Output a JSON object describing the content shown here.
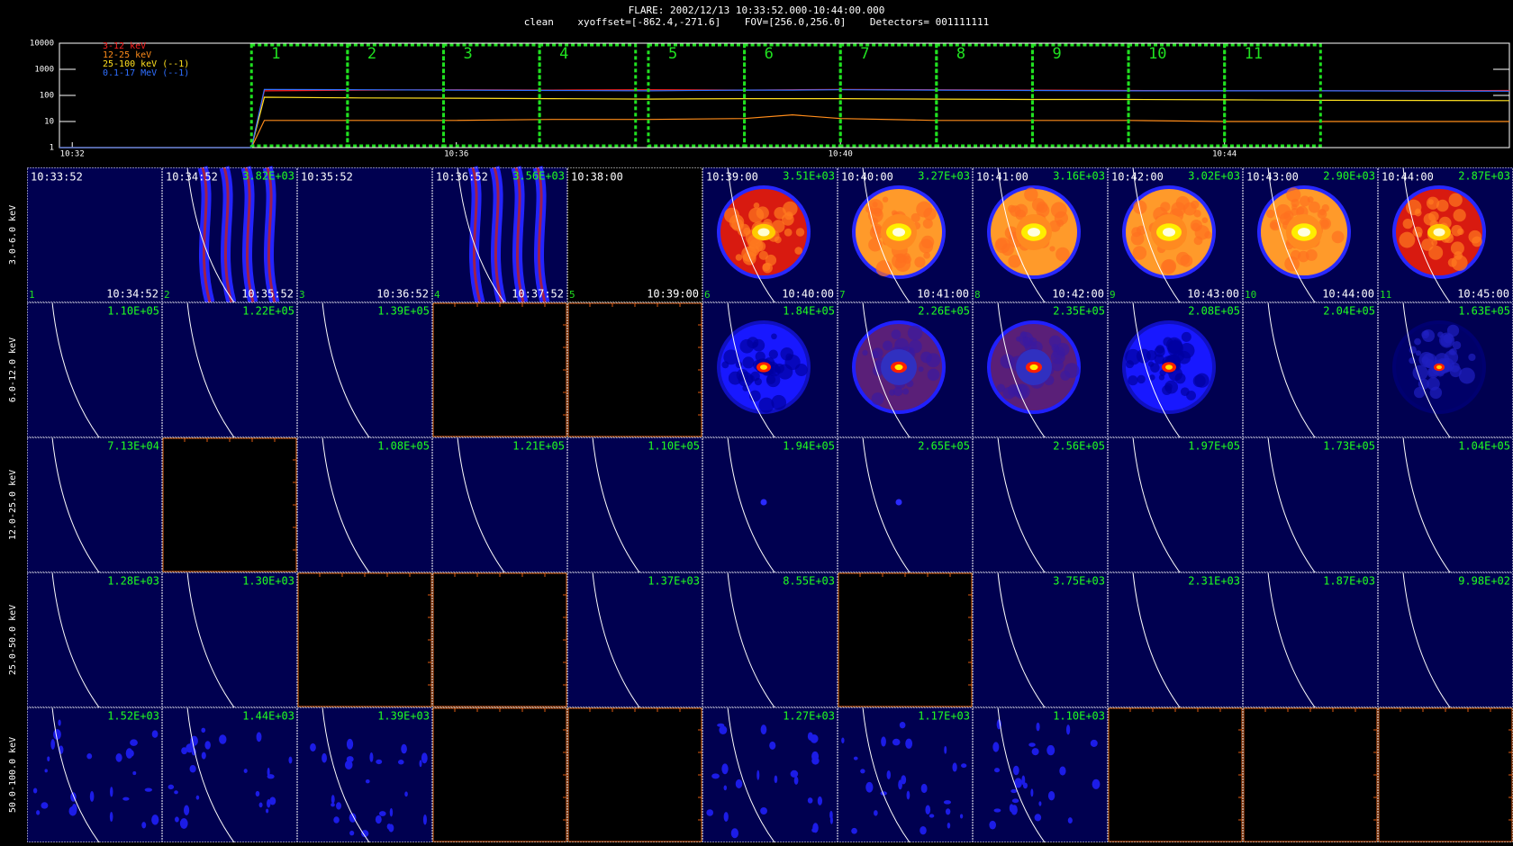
{
  "header": {
    "title": "FLARE: 2002/12/13 10:33:52.000-10:44:00.000",
    "subtitle": "clean    xyoffset=[-862.4,-271.6]    FOV=[256.0,256.0]    Detectors= 001111111"
  },
  "chart_data": {
    "type": "line",
    "log_scale": true,
    "x": [
      "10:31:52",
      "10:33:52",
      "10:34:00",
      "10:35:00",
      "10:36:00",
      "10:37:00",
      "10:38:00",
      "10:39:00",
      "10:39:30",
      "10:40:00",
      "10:41:00",
      "10:42:00",
      "10:43:00",
      "10:44:00",
      "10:45:00",
      "10:46:58"
    ],
    "series": [
      {
        "name": "3-12 keV",
        "color": "#ff2020",
        "values": [
          1,
          1,
          150,
          160,
          165,
          160,
          165,
          160,
          165,
          170,
          165,
          160,
          155,
          150,
          150,
          155
        ]
      },
      {
        "name": "12-25 keV",
        "color": "#ff8c1a",
        "values": [
          1,
          1,
          11,
          11,
          11,
          12,
          12,
          13,
          18,
          13,
          11,
          11,
          11,
          10,
          10,
          10
        ]
      },
      {
        "name": "25-100 keV (--1)",
        "color": "#ffe020",
        "values": [
          1,
          1,
          85,
          80,
          78,
          75,
          72,
          75,
          75,
          75,
          72,
          70,
          70,
          68,
          65,
          63
        ]
      },
      {
        "name": "0.1-17 MeV (--1)",
        "color": "#2f6fff",
        "values": [
          1,
          1,
          170,
          165,
          160,
          155,
          150,
          160,
          160,
          165,
          160,
          155,
          150,
          150,
          150,
          145
        ]
      }
    ],
    "xlim": [
      "10:31:52",
      "10:46:58"
    ],
    "xticks": [
      "10:32",
      "10:36",
      "10:40",
      "10:44"
    ],
    "ylim": [
      1,
      10000
    ],
    "yticks": [
      1,
      10,
      100,
      1000,
      10000
    ],
    "legend": "upper left"
  },
  "intervals": [
    {
      "number": "1",
      "start": "10:33:52",
      "end": "10:34:52"
    },
    {
      "number": "2",
      "start": "10:34:52",
      "end": "10:35:52"
    },
    {
      "number": "3",
      "start": "10:35:52",
      "end": "10:36:52"
    },
    {
      "number": "4",
      "start": "10:36:52",
      "end": "10:37:52"
    },
    {
      "number": "5",
      "start": "10:38:00",
      "end": "10:39:00"
    },
    {
      "number": "6",
      "start": "10:39:00",
      "end": "10:40:00"
    },
    {
      "number": "7",
      "start": "10:40:00",
      "end": "10:41:00"
    },
    {
      "number": "8",
      "start": "10:41:00",
      "end": "10:42:00"
    },
    {
      "number": "9",
      "start": "10:42:00",
      "end": "10:43:00"
    },
    {
      "number": "10",
      "start": "10:43:00",
      "end": "10:44:00"
    },
    {
      "number": "11",
      "start": "10:44:00",
      "end": "10:45:00"
    }
  ],
  "grid": {
    "bands": [
      "3.0-6.0 keV",
      "6.0-12.0 keV",
      "12.0-25.0 keV",
      "25.0-50.0 keV",
      "50.0-100.0 keV"
    ],
    "cells": [
      [
        {
          "style": "plain"
        },
        {
          "peak": "3.82E+03",
          "style": "streak"
        },
        {
          "style": "plain"
        },
        {
          "peak": "3.56E+03",
          "style": "streak"
        },
        {
          "style": "black"
        },
        {
          "peak": "3.51E+03",
          "style": "disk-red"
        },
        {
          "peak": "3.27E+03",
          "style": "disk-orange"
        },
        {
          "peak": "3.16E+03",
          "style": "disk-orange"
        },
        {
          "peak": "3.02E+03",
          "style": "disk-orange"
        },
        {
          "peak": "2.90E+03",
          "style": "disk-orange"
        },
        {
          "peak": "2.87E+03",
          "style": "disk-red"
        }
      ],
      [
        {
          "peak": "1.10E+05",
          "style": "limb"
        },
        {
          "peak": "1.22E+05",
          "style": "limb"
        },
        {
          "peak": "1.39E+05",
          "style": "limb"
        },
        {
          "style": "none"
        },
        {
          "style": "none"
        },
        {
          "peak": "1.84E+05",
          "style": "disk-blue"
        },
        {
          "peak": "2.26E+05",
          "style": "disk-purple"
        },
        {
          "peak": "2.35E+05",
          "style": "disk-purple"
        },
        {
          "peak": "2.08E+05",
          "style": "disk-blue"
        },
        {
          "peak": "2.04E+05",
          "style": "limb"
        },
        {
          "peak": "1.63E+05",
          "style": "disk-faint"
        }
      ],
      [
        {
          "peak": "7.13E+04",
          "style": "limb"
        },
        {
          "style": "none"
        },
        {
          "peak": "1.08E+05",
          "style": "limb"
        },
        {
          "peak": "1.21E+05",
          "style": "limb"
        },
        {
          "peak": "1.10E+05",
          "style": "limb"
        },
        {
          "peak": "1.94E+05",
          "style": "dot"
        },
        {
          "peak": "2.65E+05",
          "style": "dot"
        },
        {
          "peak": "2.56E+05",
          "style": "limb"
        },
        {
          "peak": "1.97E+05",
          "style": "limb"
        },
        {
          "peak": "1.73E+05",
          "style": "limb"
        },
        {
          "peak": "1.04E+05",
          "style": "limb"
        }
      ],
      [
        {
          "peak": "1.28E+03",
          "style": "limb"
        },
        {
          "peak": "1.30E+03",
          "style": "limb"
        },
        {
          "style": "none"
        },
        {
          "style": "none"
        },
        {
          "peak": "1.37E+03",
          "style": "limb"
        },
        {
          "peak": "8.55E+03",
          "style": "limb"
        },
        {
          "style": "none"
        },
        {
          "peak": "3.75E+03",
          "style": "limb"
        },
        {
          "peak": "2.31E+03",
          "style": "limb"
        },
        {
          "peak": "1.87E+03",
          "style": "limb"
        },
        {
          "peak": "9.98E+02",
          "style": "limb"
        }
      ],
      [
        {
          "peak": "1.52E+03",
          "style": "noise"
        },
        {
          "peak": "1.44E+03",
          "style": "noise"
        },
        {
          "peak": "1.39E+03",
          "style": "noise"
        },
        {
          "style": "none"
        },
        {
          "style": "none"
        },
        {
          "peak": "1.27E+03",
          "style": "noise"
        },
        {
          "peak": "1.17E+03",
          "style": "noise"
        },
        {
          "peak": "1.10E+03",
          "style": "noise"
        },
        {
          "style": "none"
        },
        {
          "style": "none"
        },
        {
          "style": "none"
        }
      ]
    ]
  }
}
